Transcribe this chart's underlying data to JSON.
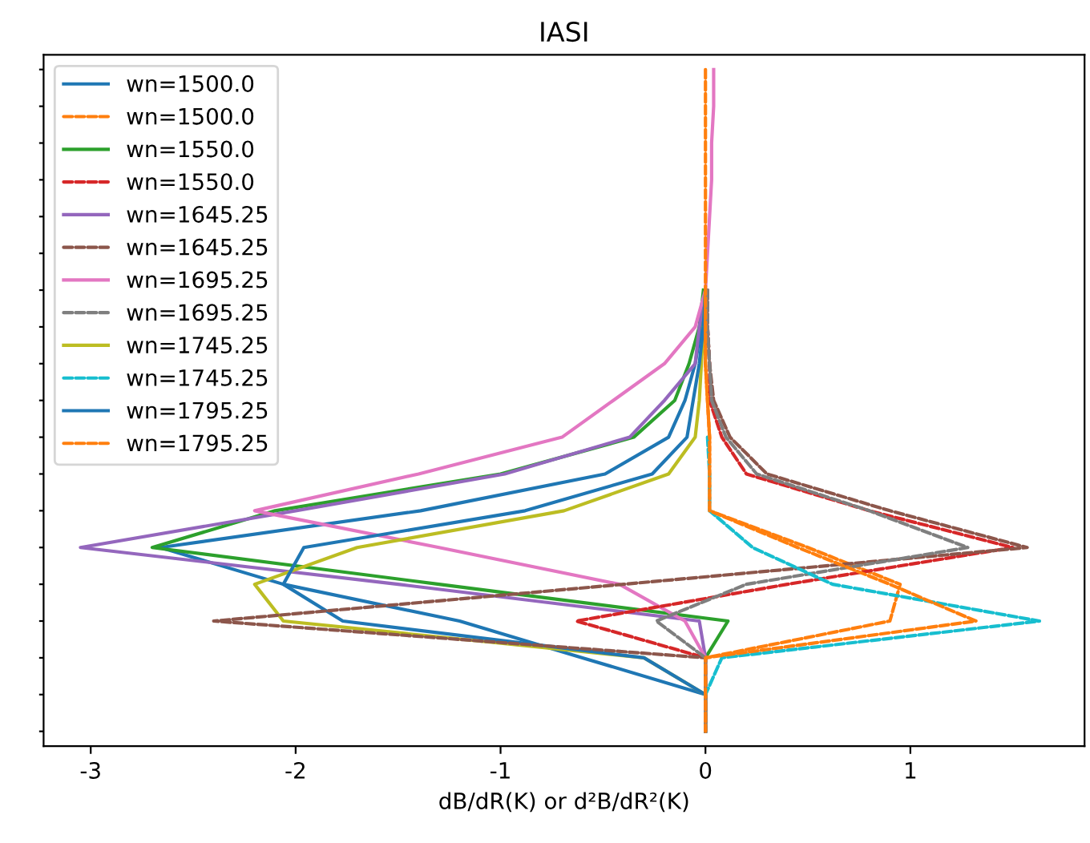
{
  "chart_data": {
    "type": "line",
    "orientation": "horizontal",
    "title": "IASI",
    "xlabel": "dB/dR(K) or d²B/dR²(K)",
    "categories": [
      null,
      null,
      null,
      null,
      null,
      null,
      null,
      null,
      null,
      null,
      null,
      null,
      null,
      null,
      null,
      null,
      null,
      null,
      null
    ],
    "xlim": [
      -3.23,
      1.85
    ],
    "xticks": [
      -3,
      -2,
      -1,
      0,
      1
    ],
    "tick_labels": "x",
    "grid": false,
    "legend": "top left",
    "marker": "none",
    "series": [
      {
        "name": "wn=1500.0",
        "color": "#1f77b4",
        "line_style": "solid",
        "values": [
          null,
          null,
          null,
          null,
          null,
          null,
          0,
          -0.02,
          -0.05,
          -0.1,
          -0.18,
          -0.49,
          -1.39,
          -2.66,
          -2.06,
          -1.2,
          -0.6,
          0,
          0
        ]
      },
      {
        "name": "wn=1500.0",
        "color": "#ff7f0e",
        "line_style": "dashed",
        "values": [
          null,
          null,
          null,
          null,
          null,
          null,
          0,
          0,
          0,
          0.01,
          0.02,
          0.02,
          0.02,
          0.5,
          0.95,
          0.9,
          0,
          0,
          0
        ]
      },
      {
        "name": "wn=1550.0",
        "color": "#2ca02c",
        "line_style": "solid",
        "values": [
          null,
          null,
          null,
          null,
          null,
          null,
          -0.01,
          -0.03,
          -0.08,
          -0.15,
          -0.35,
          -1.0,
          -2.1,
          -2.7,
          -1.3,
          0.11,
          0,
          0,
          0
        ]
      },
      {
        "name": "wn=1550.0",
        "color": "#d62728",
        "line_style": "dashed",
        "values": [
          null,
          null,
          null,
          null,
          null,
          null,
          0.01,
          0.01,
          0.02,
          0.02,
          0.08,
          0.2,
          0.8,
          1.5,
          0.4,
          -0.63,
          0,
          null,
          null
        ]
      },
      {
        "name": "wn=1645.25",
        "color": "#9467bd",
        "line_style": "solid",
        "values": [
          null,
          null,
          null,
          null,
          null,
          null,
          0,
          -0.03,
          -0.05,
          -0.2,
          -0.37,
          -0.98,
          -2.0,
          -3.05,
          -1.5,
          -0.03,
          0,
          0,
          0
        ]
      },
      {
        "name": "wn=1645.25",
        "color": "#8c564b",
        "line_style": "dashed",
        "values": [
          null,
          null,
          null,
          null,
          null,
          null,
          0.01,
          0.01,
          0.02,
          0.04,
          0.12,
          0.3,
          0.9,
          1.57,
          -0.4,
          -2.4,
          0,
          0,
          0
        ]
      },
      {
        "name": "wn=1695.25",
        "color": "#e377c2",
        "line_style": "solid",
        "values": [
          0.04,
          0.04,
          0.03,
          0.03,
          0.02,
          0.01,
          0,
          -0.05,
          -0.2,
          -0.45,
          -0.7,
          -1.4,
          -2.2,
          -1.3,
          -0.42,
          -0.1,
          0,
          0,
          0
        ]
      },
      {
        "name": "wn=1695.25",
        "color": "#7f7f7f",
        "line_style": "dashed",
        "values": [
          null,
          null,
          null,
          null,
          null,
          null,
          0.01,
          0.01,
          0.02,
          0.03,
          0.1,
          0.25,
          0.8,
          1.28,
          0.2,
          -0.24,
          0,
          0,
          0
        ]
      },
      {
        "name": "wn=1745.25",
        "color": "#bcbd22",
        "line_style": "solid",
        "values": [
          null,
          null,
          null,
          null,
          null,
          null,
          0,
          -0.01,
          -0.02,
          -0.03,
          -0.05,
          -0.18,
          -0.69,
          -1.7,
          -2.2,
          -2.06,
          -0.3,
          0,
          0
        ]
      },
      {
        "name": "wn=1745.25",
        "color": "#17becf",
        "line_style": "dashed",
        "values": [
          null,
          null,
          null,
          null,
          null,
          null,
          null,
          null,
          null,
          null,
          0.01,
          0.02,
          0.02,
          0.23,
          0.62,
          1.63,
          0.08,
          0,
          null
        ]
      },
      {
        "name": "wn=1795.25",
        "color": "#1f77b4",
        "line_style": "solid",
        "values": [
          null,
          null,
          null,
          null,
          null,
          null,
          0,
          -0.01,
          -0.03,
          -0.06,
          -0.09,
          -0.26,
          -0.88,
          -1.96,
          -2.06,
          -1.77,
          -0.3,
          0,
          0
        ]
      },
      {
        "name": "wn=1795.25",
        "color": "#ff7f0e",
        "line_style": "dashed",
        "values": [
          0,
          0,
          0,
          0,
          0,
          0,
          0,
          0,
          0,
          0.01,
          0.02,
          0.02,
          0.02,
          0.45,
          0.9,
          1.32,
          0,
          0,
          0
        ]
      }
    ]
  }
}
